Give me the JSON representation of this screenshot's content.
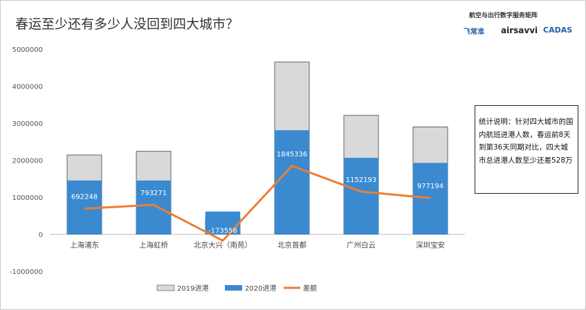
{
  "title": "春运至少还有多少人没回到四大城市？",
  "brand": {
    "title": "航空与出行数字服务矩阵",
    "logos": [
      "飞常准",
      "airsavvi",
      "CADAS"
    ]
  },
  "note": "统计说明：针对四大城市的国内航班进港人数，春运前8天到第36天同期对比，四大城市总进港人数至少还差528万",
  "colors": {
    "s2019": "#d9d9d9",
    "s2020": "#3b8ad0",
    "diff": "#ed7d31"
  },
  "chart_data": {
    "type": "bar",
    "categories": [
      "上海浦东",
      "上海虹桥",
      "北京大兴（南苑）",
      "北京首都",
      "广州白云",
      "深圳宝安"
    ],
    "series": [
      {
        "name": "2019进港",
        "type": "bar",
        "values": [
          2140000,
          2240000,
          434000,
          4650000,
          3210000,
          2900000
        ]
      },
      {
        "name": "2020进港",
        "type": "bar",
        "values": [
          1448000,
          1447000,
          608000,
          2805000,
          2058000,
          1923000
        ]
      },
      {
        "name": "差额",
        "type": "line",
        "values": [
          692248,
          793271,
          -173558,
          1845336,
          1152193,
          977194
        ]
      }
    ],
    "data_labels": [
      "692248",
      "793271",
      "-173558",
      "1845336",
      "1152193",
      "977194"
    ],
    "yticks": [
      "5000000",
      "4000000",
      "3000000",
      "2000000",
      "1000000",
      "0",
      "-1000000"
    ],
    "ylim": [
      -1000000,
      5000000
    ],
    "legend_position": "bottom"
  }
}
